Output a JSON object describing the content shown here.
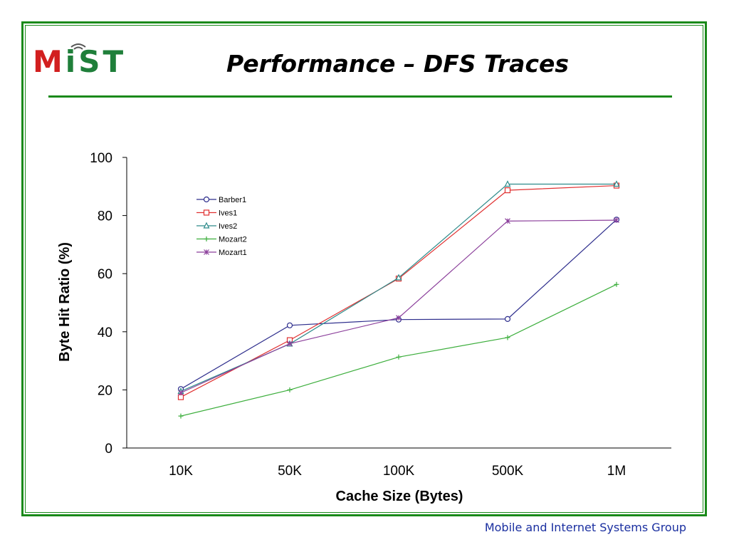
{
  "slide": {
    "logo": {
      "m": "M",
      "i": "i",
      "st": "ST"
    },
    "title": "Performance – DFS Traces",
    "footer": "Mobile and Internet Systems Group"
  },
  "colors": {
    "frame": "#1a8a1a",
    "title_rule": "#1a8a1a",
    "logo_red": "#d21f1f",
    "logo_green": "#1f7f3a",
    "footer_text": "#1a2fa0"
  },
  "chart_data": {
    "type": "line",
    "title": "",
    "xlabel": "Cache Size (Bytes)",
    "ylabel": "Byte Hit Ratio (%)",
    "categories": [
      "10K",
      "50K",
      "100K",
      "500K",
      "1M"
    ],
    "ylim": [
      0,
      100
    ],
    "yticks": [
      0,
      20,
      40,
      60,
      80,
      100
    ],
    "grid": false,
    "legend_position": "top-left",
    "series": [
      {
        "name": "Barber1",
        "marker": "circle",
        "color": "#2d2d8c",
        "values": [
          20.3,
          42.2,
          44.2,
          44.4,
          78.6
        ]
      },
      {
        "name": "Ives1",
        "marker": "square",
        "color": "#e03030",
        "values": [
          17.5,
          37.1,
          58.3,
          88.7,
          90.3
        ]
      },
      {
        "name": "Ives2",
        "marker": "triangle",
        "color": "#2e8b8b",
        "values": [
          19.5,
          35.8,
          58.6,
          90.8,
          90.8
        ]
      },
      {
        "name": "Mozart2",
        "marker": "plus",
        "color": "#3cae3c",
        "values": [
          11.0,
          20.0,
          31.3,
          38.0,
          56.3
        ]
      },
      {
        "name": "Mozart1",
        "marker": "asterisk",
        "color": "#8b3f9b",
        "values": [
          19.0,
          35.9,
          44.8,
          78.1,
          78.4
        ]
      }
    ]
  }
}
